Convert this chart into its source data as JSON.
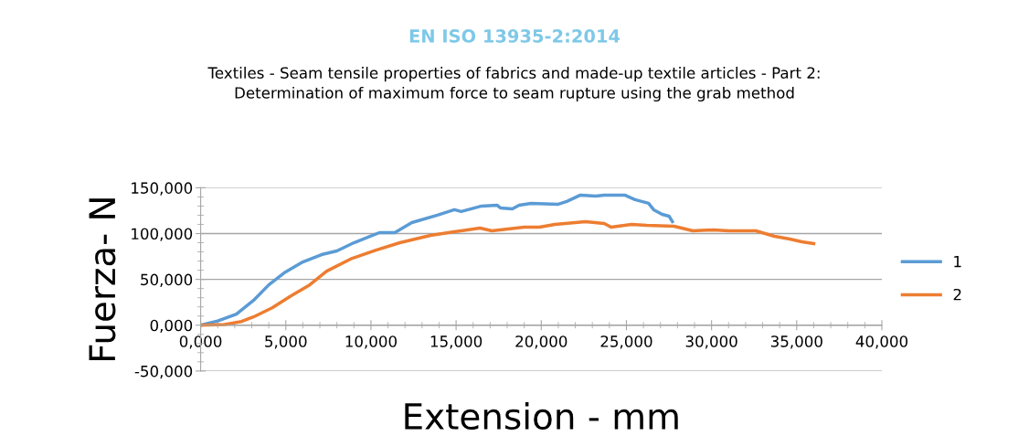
{
  "chart_data": {
    "type": "line",
    "title": "EN ISO 13935-2:2014",
    "subtitle": "Textiles - Seam tensile properties of fabrics and made-up textile articles - Part 2:\nDetermination of maximum force to seam rupture using the grab method",
    "xlabel": "Extension - mm",
    "ylabel": "Fuerza- N",
    "xlim": [
      0,
      40
    ],
    "ylim": [
      -50,
      150
    ],
    "xticks": [
      {
        "value": 0,
        "label": "0,000"
      },
      {
        "value": 5,
        "label": "5,000"
      },
      {
        "value": 10,
        "label": "10,000"
      },
      {
        "value": 15,
        "label": "15,000"
      },
      {
        "value": 20,
        "label": "20,000"
      },
      {
        "value": 25,
        "label": "25,000"
      },
      {
        "value": 30,
        "label": "30,000"
      },
      {
        "value": 35,
        "label": "35,000"
      },
      {
        "value": 40,
        "label": "40,000"
      }
    ],
    "yticks": [
      {
        "value": -50,
        "label": "-50,000"
      },
      {
        "value": 0,
        "label": "0,000"
      },
      {
        "value": 50,
        "label": "50,000"
      },
      {
        "value": 100,
        "label": "100,000"
      },
      {
        "value": 150,
        "label": "150,000"
      }
    ],
    "grid": "y",
    "legend": "right",
    "marker": "none",
    "line_style": "solid",
    "series": [
      {
        "name": "1",
        "color": "#5b9bd5",
        "x": [
          0,
          1,
          2.1,
          3.1,
          4,
          4.9,
          6,
          7.1,
          8,
          9,
          10.5,
          11.4,
          12.4,
          13.9,
          14.9,
          15.3,
          16.5,
          17.4,
          17.6,
          18.3,
          18.7,
          19.4,
          21,
          21.5,
          22.3,
          23.2,
          23.7,
          24.9,
          25.5,
          26.3,
          26.6,
          27.1,
          27.5,
          27.7
        ],
        "values": [
          0,
          4.6,
          12,
          27,
          44,
          57,
          69,
          77,
          81,
          90,
          101,
          101,
          112,
          120,
          126,
          124,
          130,
          131,
          128,
          127,
          131,
          133,
          132,
          135,
          142,
          141,
          142,
          142,
          137,
          133,
          126,
          121,
          119,
          113
        ]
      },
      {
        "name": "2",
        "color": "#ed7d31",
        "x": [
          0,
          1.4,
          2.4,
          3.1,
          4.2,
          5.3,
          6.4,
          7.4,
          8.9,
          10.3,
          11.7,
          13.5,
          14.9,
          16.4,
          17.1,
          19,
          19.9,
          20.8,
          22.6,
          23.7,
          24.1,
          25.3,
          26.2,
          27.8,
          28.9,
          30.1,
          31,
          32.6,
          33.7,
          34.6,
          35.3,
          36
        ],
        "values": [
          0,
          0.7,
          4,
          9,
          19,
          32,
          44,
          59,
          73,
          82,
          90,
          98,
          102,
          106,
          103,
          107,
          107,
          110,
          113,
          111,
          107,
          110,
          109,
          108,
          103,
          104,
          103,
          103,
          97,
          94,
          91,
          89
        ]
      }
    ]
  }
}
